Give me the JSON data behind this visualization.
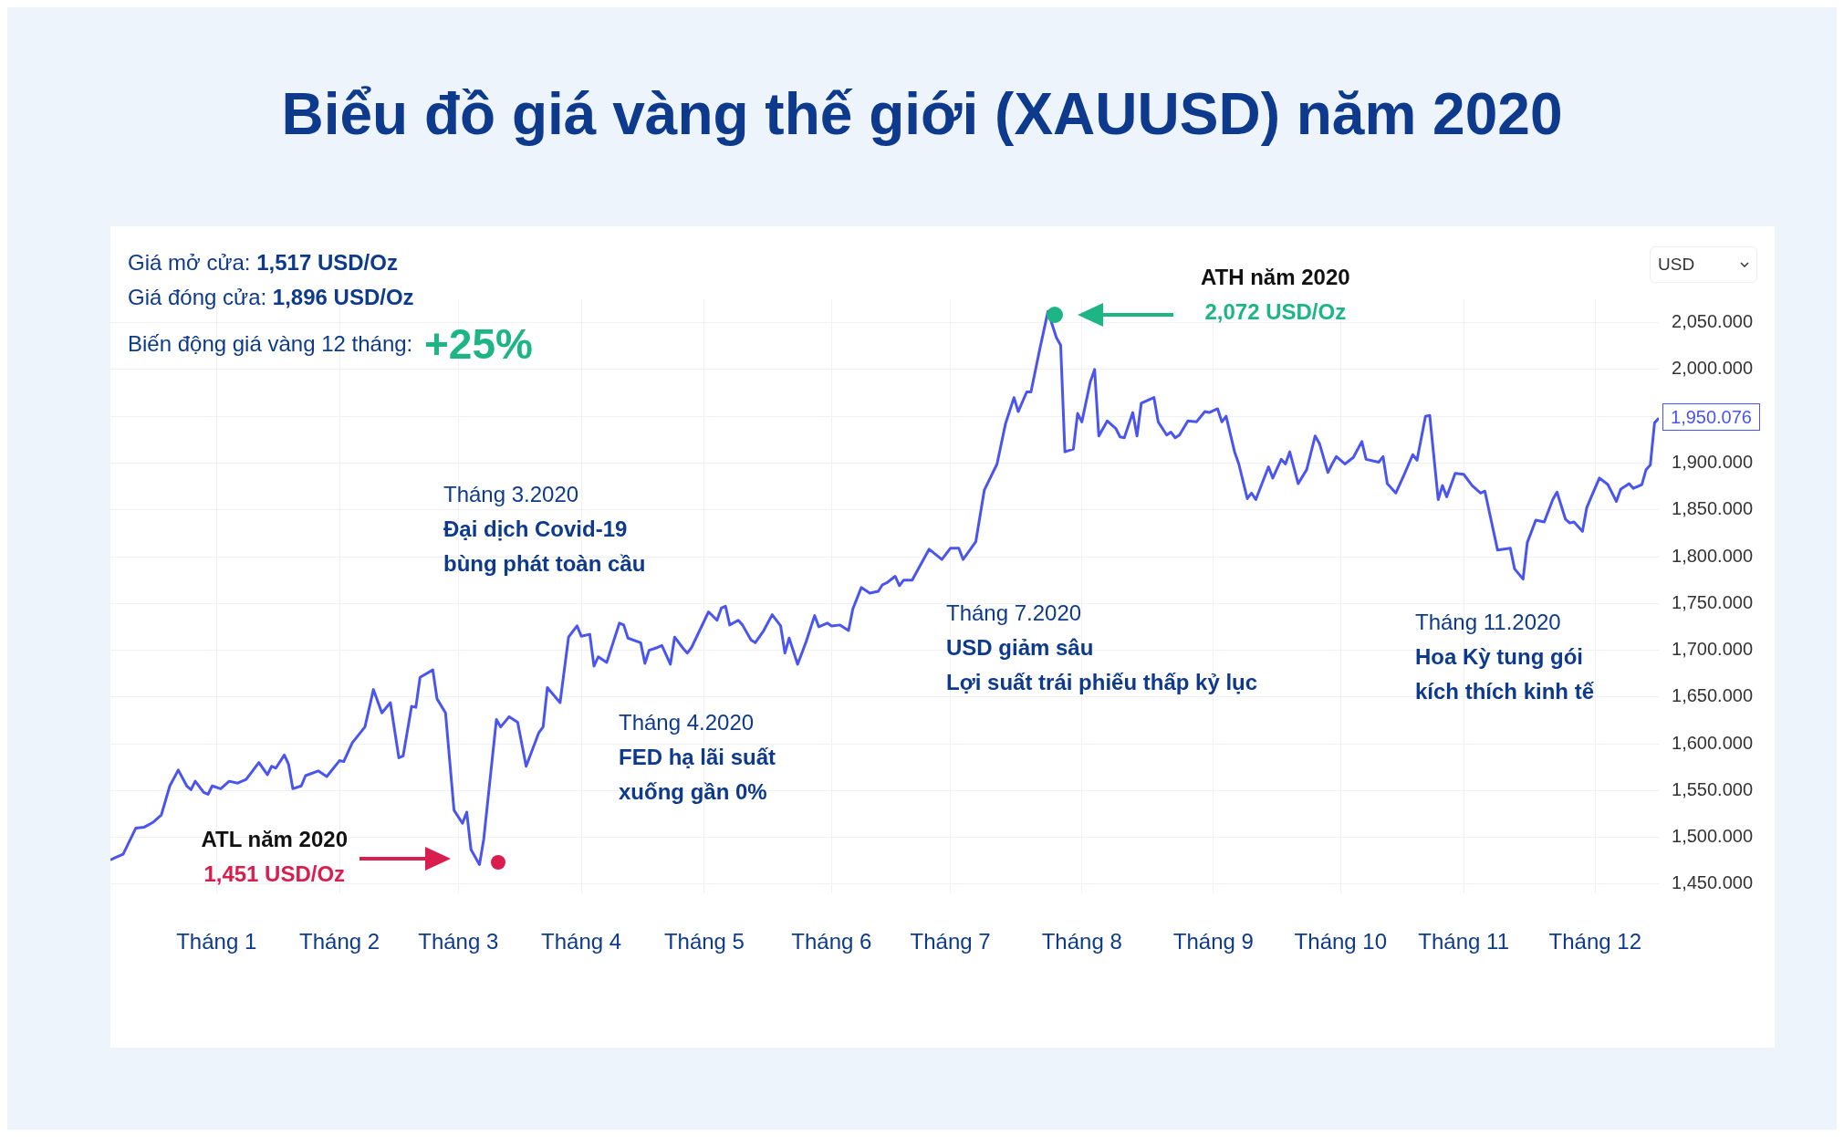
{
  "chart_data": {
    "type": "line",
    "title": "Biểu đồ giá vàng thế giới (XAUUSD) năm 2020",
    "x": [
      "2020-01-01",
      "2020-01-02",
      "2020-01-04",
      "2020-01-07",
      "2020-01-09",
      "2020-01-11",
      "2020-01-13",
      "2020-01-15",
      "2020-01-17",
      "2020-01-19",
      "2020-01-20",
      "2020-01-21",
      "2020-01-23",
      "2020-01-24",
      "2020-01-25",
      "2020-01-27",
      "2020-01-29",
      "2020-01-31",
      "2020-02-02",
      "2020-02-05",
      "2020-02-07",
      "2020-02-08",
      "2020-02-09",
      "2020-02-11",
      "2020-02-12",
      "2020-02-13",
      "2020-02-15",
      "2020-02-16",
      "2020-02-19",
      "2020-02-21",
      "2020-02-24",
      "2020-02-25",
      "2020-02-27",
      "2020-03-01",
      "2020-03-03",
      "2020-03-05",
      "2020-03-07",
      "2020-03-09",
      "2020-03-10",
      "2020-03-12",
      "2020-03-13",
      "2020-03-14",
      "2020-03-17",
      "2020-03-18",
      "2020-03-20",
      "2020-03-22",
      "2020-03-24",
      "2020-03-25",
      "2020-03-26",
      "2020-03-28",
      "2020-03-29",
      "2020-04-01",
      "2020-04-02",
      "2020-04-04",
      "2020-04-06",
      "2020-04-08",
      "2020-04-11",
      "2020-04-12",
      "2020-04-13",
      "2020-04-16",
      "2020-04-18",
      "2020-04-20",
      "2020-04-21",
      "2020-04-23",
      "2020-04-24",
      "2020-04-25",
      "2020-04-27",
      "2020-04-30",
      "2020-05-01",
      "2020-05-02",
      "2020-05-05",
      "2020-05-06",
      "2020-05-07",
      "2020-05-09",
      "2020-05-10",
      "2020-05-12",
      "2020-05-13",
      "2020-05-15",
      "2020-05-16",
      "2020-05-17",
      "2020-05-21",
      "2020-05-23",
      "2020-05-24",
      "2020-05-25",
      "2020-05-26",
      "2020-05-28",
      "2020-05-29",
      "2020-05-31",
      "2020-06-01",
      "2020-06-03",
      "2020-06-05",
      "2020-06-07",
      "2020-06-08",
      "2020-06-09",
      "2020-06-11",
      "2020-06-13",
      "2020-06-15",
      "2020-06-16",
      "2020-06-18",
      "2020-06-19",
      "2020-06-21",
      "2020-06-23",
      "2020-06-24",
      "2020-06-26",
      "2020-06-28",
      "2020-06-30",
      "2020-07-01",
      "2020-07-02",
      "2020-07-04",
      "2020-07-05",
      "2020-07-06",
      "2020-07-08",
      "2020-07-12",
      "2020-07-15",
      "2020-07-17",
      "2020-07-19",
      "2020-07-20",
      "2020-07-23",
      "2020-07-25",
      "2020-07-28",
      "2020-07-30",
      "2020-08-01",
      "2020-08-02",
      "2020-08-04",
      "2020-08-05",
      "2020-08-07",
      "2020-08-09",
      "2020-08-11",
      "2020-08-12",
      "2020-08-13",
      "2020-08-15",
      "2020-08-16",
      "2020-08-17",
      "2020-08-19",
      "2020-08-20",
      "2020-08-21",
      "2020-08-23",
      "2020-08-25",
      "2020-08-26",
      "2020-08-27",
      "2020-08-29",
      "2020-08-30",
      "2020-08-31",
      "2020-09-03",
      "2020-09-04",
      "2020-09-06",
      "2020-09-07",
      "2020-09-08",
      "2020-09-09",
      "2020-09-11",
      "2020-09-13",
      "2020-09-15",
      "2020-09-16",
      "2020-09-18",
      "2020-09-19",
      "2020-09-20",
      "2020-09-22",
      "2020-09-23",
      "2020-09-25",
      "2020-09-26",
      "2020-09-27",
      "2020-09-30",
      "2020-10-01",
      "2020-10-03",
      "2020-10-04",
      "2020-10-05",
      "2020-10-07",
      "2020-10-09",
      "2020-10-11",
      "2020-10-12",
      "2020-10-14",
      "2020-10-15",
      "2020-10-16",
      "2020-10-18",
      "2020-10-20",
      "2020-10-22",
      "2020-10-23",
      "2020-10-26",
      "2020-10-27",
      "2020-10-28",
      "2020-10-30",
      "2020-11-01",
      "2020-11-03",
      "2020-11-04",
      "2020-11-06",
      "2020-11-07",
      "2020-11-09",
      "2020-11-10",
      "2020-11-11",
      "2020-11-13",
      "2020-11-15",
      "2020-11-17",
      "2020-11-19",
      "2020-11-20",
      "2020-11-23",
      "2020-11-26",
      "2020-11-27",
      "2020-11-29",
      "2020-11-30",
      "2020-12-02",
      "2020-12-04",
      "2020-12-06",
      "2020-12-07",
      "2020-12-09",
      "2020-12-10",
      "2020-12-11",
      "2020-12-13",
      "2020-12-14",
      "2020-12-15",
      "2020-12-17",
      "2020-12-19",
      "2020-12-21",
      "2020-12-22",
      "2020-12-24",
      "2020-12-25",
      "2020-12-27",
      "2020-12-28",
      "2020-12-29",
      "2020-12-30",
      "2020-12-31"
    ],
    "series": [
      {
        "color": "#4a55f0",
        "values": [
          1476,
          1478,
          1482,
          1510,
          1511,
          1516,
          1524,
          1555,
          1572,
          1555,
          1551,
          1560,
          1548,
          1546,
          1555,
          1552,
          1560,
          1558,
          1562,
          1580,
          1567,
          1576,
          1574,
          1588,
          1578,
          1552,
          1555,
          1566,
          1571,
          1565,
          1582,
          1581,
          1601,
          1618,
          1658,
          1633,
          1644,
          1585,
          1587,
          1640,
          1639,
          1671,
          1679,
          1648,
          1633,
          1529,
          1515,
          1527,
          1487,
          1471,
          1498,
          1626,
          1618,
          1629,
          1623,
          1576,
          1612,
          1618,
          1660,
          1644,
          1714,
          1726,
          1715,
          1717,
          1683,
          1693,
          1687,
          1729,
          1727,
          1713,
          1708,
          1686,
          1700,
          1703,
          1705,
          1685,
          1714,
          1702,
          1697,
          1703,
          1741,
          1732,
          1745,
          1747,
          1727,
          1732,
          1727,
          1711,
          1708,
          1721,
          1738,
          1726,
          1697,
          1713,
          1685,
          1709,
          1737,
          1725,
          1729,
          1726,
          1727,
          1721,
          1744,
          1767,
          1761,
          1763,
          1770,
          1772,
          1779,
          1769,
          1775,
          1775,
          1808,
          1797,
          1809,
          1809,
          1797,
          1816,
          1871,
          1899,
          1942,
          1970,
          1955,
          1976,
          1976,
          2020,
          2062,
          2034,
          2026,
          1912,
          1915,
          1953,
          1944,
          1987,
          2000,
          1929,
          1945,
          1937,
          1928,
          1927,
          1954,
          1929,
          1964,
          1970,
          1944,
          1930,
          1933,
          1927,
          1930,
          1945,
          1944,
          1955,
          1954,
          1958,
          1944,
          1950,
          1912,
          1899,
          1862,
          1868,
          1861,
          1896,
          1884,
          1904,
          1899,
          1912,
          1878,
          1893,
          1929,
          1921,
          1890,
          1899,
          1907,
          1899,
          1906,
          1923,
          1904,
          1901,
          1907,
          1878,
          1868,
          1888,
          1909,
          1903,
          1950,
          1951,
          1861,
          1876,
          1864,
          1889,
          1888,
          1876,
          1868,
          1870,
          1807,
          1809,
          1787,
          1776,
          1815,
          1839,
          1837,
          1861,
          1869,
          1840,
          1836,
          1837,
          1827,
          1852,
          1863,
          1884,
          1877,
          1859,
          1872,
          1878,
          1873,
          1877,
          1893,
          1898,
          1943,
          1948
        ]
      }
    ],
    "xlim": [
      "2020-01-01",
      "2020-12-31"
    ],
    "xticks": [
      {
        "value": "2020-01-26",
        "label": "Tháng 1"
      },
      {
        "value": "2020-02-24",
        "label": "Tháng 2"
      },
      {
        "value": "2020-03-23",
        "label": "Tháng 3"
      },
      {
        "value": "2020-04-21",
        "label": "Tháng 4"
      },
      {
        "value": "2020-05-20",
        "label": "Tháng 5"
      },
      {
        "value": "2020-06-19",
        "label": "Tháng 6"
      },
      {
        "value": "2020-07-17",
        "label": "Tháng 7"
      },
      {
        "value": "2020-08-17",
        "label": "Tháng 8"
      },
      {
        "value": "2020-09-17",
        "label": "Tháng 9"
      },
      {
        "value": "2020-10-17",
        "label": "Tháng 10"
      },
      {
        "value": "2020-11-15",
        "label": "Tháng 11"
      },
      {
        "value": "2020-12-16",
        "label": "Tháng 12"
      }
    ],
    "ylim": [
      1440,
      2075
    ],
    "yticks": [
      {
        "value": 1450,
        "label": "1,450.000"
      },
      {
        "value": 1500,
        "label": "1,500.000"
      },
      {
        "value": 1550,
        "label": "1,550.000"
      },
      {
        "value": 1600,
        "label": "1,600.000"
      },
      {
        "value": 1650,
        "label": "1,650.000"
      },
      {
        "value": 1700,
        "label": "1,700.000"
      },
      {
        "value": 1750,
        "label": "1,750.000"
      },
      {
        "value": 1800,
        "label": "1,800.000"
      },
      {
        "value": 1850,
        "label": "1,850.000"
      },
      {
        "value": 1900,
        "label": "1,900.000"
      },
      {
        "value": 1950,
        "label": null
      },
      {
        "value": 2000,
        "label": "2,000.000"
      },
      {
        "value": 2050,
        "label": "2,050.000"
      }
    ],
    "grid": true,
    "legend": false,
    "marker": "none",
    "line_style": "solid",
    "annotations": [
      "Giá mở cửa: ",
      "1,517 USD/Oz",
      "Giá đóng cửa: ",
      "1,896 USD/Oz",
      "Biến động giá vàng 12 tháng: ",
      "+25%",
      "Tháng 3.2020\nĐại dịch Covid-19\nbùng phát toàn cầu",
      "Tháng 4.2020\nFED hạ lãi suất\nxuống gần 0%",
      "Tháng 7.2020\nUSD giảm sâu\nLợi suất trái phiếu thấp kỷ lục",
      "Tháng 11.2020\nHoa Kỳ tung gói\nkích thích kinh tế",
      "USD",
      "ATL năm 2020\n1,451 USD/Oz",
      "ATH năm 2020\n2,072 USD/Oz",
      {
        "text": "1,950.076",
        "x": "2020-12-31",
        "y": 1950.076
      }
    ]
  }
}
